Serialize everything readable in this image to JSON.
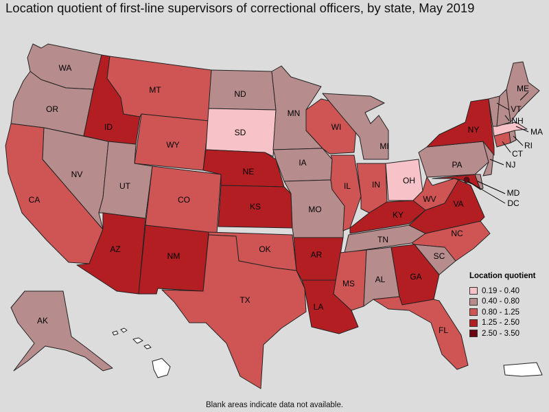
{
  "title": "Location quotient of first-line supervisors of correctional officers, by state, May 2019",
  "footnote": "Blank areas indicate data not available.",
  "legend": {
    "title": "Location quotient",
    "items": [
      {
        "label": "0.19 - 0.40",
        "color": "#f7c2c8"
      },
      {
        "label": "0.40 - 0.80",
        "color": "#b78c8c"
      },
      {
        "label": "0.80 - 1.25",
        "color": "#cf5555"
      },
      {
        "label": "1.25 - 2.50",
        "color": "#b21e22"
      },
      {
        "label": "2.50 - 3.50",
        "color": "#6a0410"
      }
    ]
  },
  "no_data_color": "#ffffff",
  "states": {
    "WA": 1,
    "OR": 1,
    "CA": 2,
    "NV": 1,
    "ID": 3,
    "MT": 2,
    "WY": 2,
    "UT": 1,
    "AZ": 3,
    "CO": 2,
    "NM": 3,
    "ND": 1,
    "SD": 0,
    "NE": 3,
    "KS": 3,
    "OK": 2,
    "TX": 2,
    "MN": 1,
    "IA": 1,
    "MO": 1,
    "AR": 3,
    "LA": 3,
    "WI": 2,
    "IL": 2,
    "MI": 1,
    "IN": 2,
    "OH": 0,
    "KY": 3,
    "TN": 1,
    "MS": 2,
    "AL": 1,
    "GA": 3,
    "FL": 2,
    "SC": 1,
    "NC": 2,
    "VA": 3,
    "WV": 2,
    "PA": 1,
    "NY": 3,
    "NJ": 1,
    "DE": 1,
    "MD": 3,
    "DC": 4,
    "CT": 2,
    "RI": 1,
    "MA": 0,
    "VT": 1,
    "NH": 1,
    "ME": 1,
    "AK": 1,
    "HI": -1,
    "PR": -1
  },
  "labels": {
    "WA": "WA",
    "OR": "OR",
    "CA": "CA",
    "NV": "NV",
    "ID": "ID",
    "MT": "MT",
    "WY": "WY",
    "UT": "UT",
    "AZ": "AZ",
    "CO": "CO",
    "NM": "NM",
    "ND": "ND",
    "SD": "SD",
    "NE": "NE",
    "KS": "KS",
    "OK": "OK",
    "TX": "TX",
    "MN": "MN",
    "IA": "IA",
    "MO": "MO",
    "AR": "AR",
    "LA": "LA",
    "WI": "WI",
    "IL": "IL",
    "MI": "MI",
    "IN": "IN",
    "OH": "OH",
    "KY": "KY",
    "TN": "TN",
    "MS": "MS",
    "AL": "AL",
    "GA": "GA",
    "FL": "FL",
    "SC": "SC",
    "NC": "NC",
    "VA": "VA",
    "WV": "WV",
    "PA": "PA",
    "NY": "NY",
    "NJ": "NJ",
    "MD": "MD",
    "DC": "DC",
    "CT": "CT",
    "RI": "RI",
    "MA": "MA",
    "VT": "VT",
    "NH": "NH",
    "ME": "ME",
    "AK": "AK"
  }
}
